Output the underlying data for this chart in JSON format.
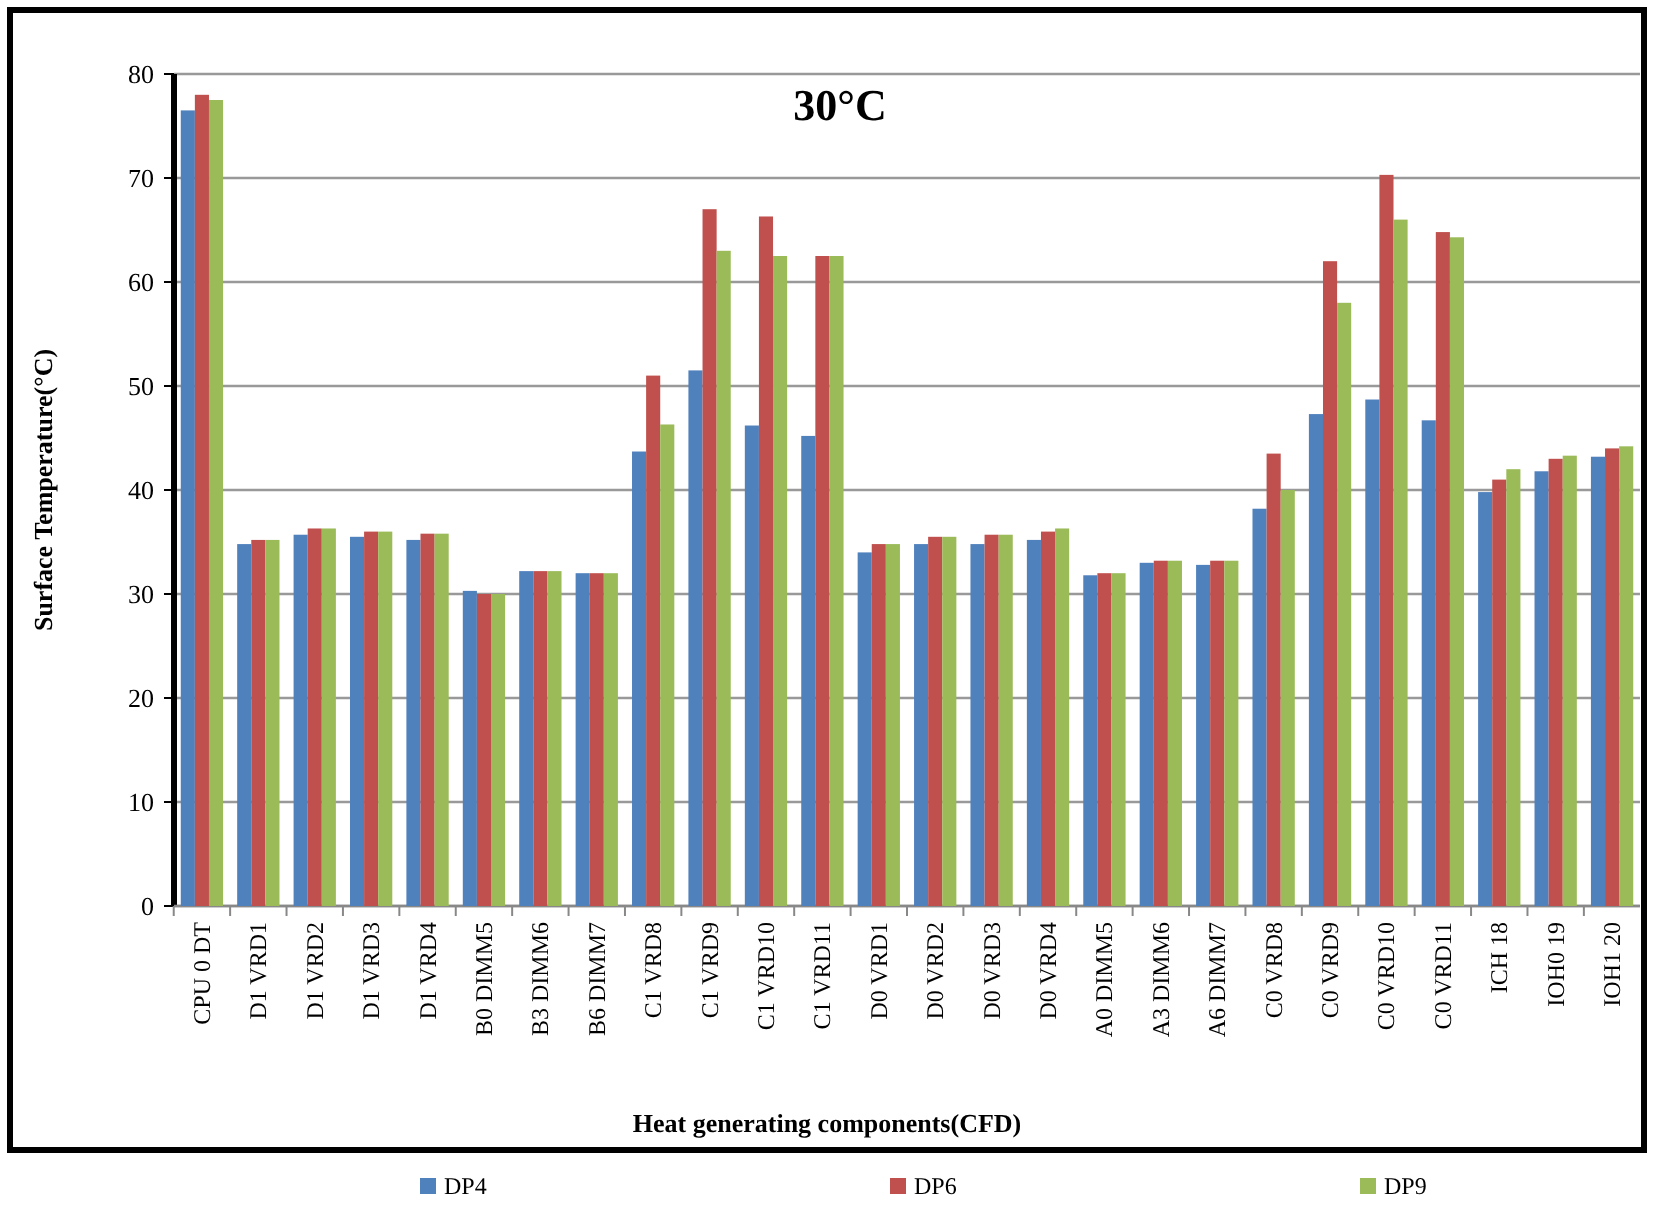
{
  "chart_data": {
    "type": "bar",
    "title": "30°C",
    "xlabel": "Heat generating components(CFD)",
    "ylabel": "Surface Temperature(°C)",
    "categories": [
      "CPU 0 DT",
      "D1 VRD1",
      "D1 VRD2",
      "D1 VRD3",
      "D1 VRD4",
      "B0 DIMM5",
      "B3 DIMM6",
      "B6 DIMM7",
      "C1 VRD8",
      "C1 VRD9",
      "C1 VRD10",
      "C1 VRD11",
      "D0 VRD1",
      "D0 VRD2",
      "D0 VRD3",
      "D0 VRD4",
      "A0 DIMM5",
      "A3 DIMM6",
      "A6 DIMM7",
      "C0 VRD8",
      "C0 VRD9",
      "C0 VRD10",
      "C0 VRD11",
      "ICH 18",
      "IOH0 19",
      "IOH1 20"
    ],
    "series": [
      {
        "name": "DP4",
        "color": "#4f81bd",
        "values": [
          76.5,
          34.8,
          35.7,
          35.5,
          35.2,
          30.3,
          32.2,
          32,
          43.7,
          51.5,
          46.2,
          45.2,
          34,
          34.8,
          34.8,
          35.2,
          31.8,
          33,
          32.8,
          38.2,
          47.3,
          48.7,
          46.7,
          39.8,
          41.8,
          43.2
        ]
      },
      {
        "name": "DP6",
        "color": "#c0504d",
        "values": [
          78,
          35.2,
          36.3,
          36,
          35.8,
          30,
          32.2,
          32,
          51,
          67,
          66.3,
          62.5,
          34.8,
          35.5,
          35.7,
          36,
          32,
          33.2,
          33.2,
          43.5,
          62,
          70.3,
          64.8,
          41,
          43,
          44
        ]
      },
      {
        "name": "DP9",
        "color": "#9bbb59",
        "values": [
          77.5,
          35.2,
          36.3,
          36,
          35.8,
          30,
          32.2,
          32,
          46.3,
          63,
          62.5,
          62.5,
          34.8,
          35.5,
          35.7,
          36.3,
          32,
          33.2,
          33.2,
          40,
          58,
          66,
          64.3,
          42,
          43.3,
          44.2
        ]
      }
    ],
    "ylim": [
      0,
      80
    ],
    "yticks": [
      0,
      10,
      20,
      30,
      40,
      50,
      60,
      70,
      80
    ],
    "grid": "y",
    "legend": "bottom"
  }
}
